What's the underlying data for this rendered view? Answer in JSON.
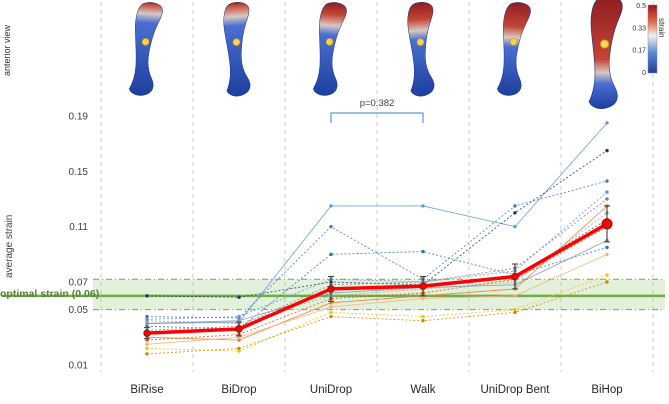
{
  "figure": {
    "anterior_view_label": "anterior view",
    "ylabel": "average strain",
    "optimal_label": "optimal strain (0.06)",
    "p_value_label": "p=0.382",
    "colorbar": {
      "label": "strain",
      "ticks": [
        "0.5",
        "0.33",
        "0.17",
        "0"
      ],
      "top_color": "#a50f15",
      "bottom_color": "#1c3f9a"
    }
  },
  "chart_data": {
    "type": "line",
    "title": "",
    "xlabel": "",
    "ylabel": "average strain",
    "categories": [
      "BiRise",
      "BiDrop",
      "UniDrop",
      "Walk",
      "UniDrop Bent",
      "BiHop"
    ],
    "yticks": [
      0.01,
      0.05,
      0.07,
      0.11,
      0.15,
      0.19
    ],
    "ylim": [
      0.005,
      0.205
    ],
    "grid": "vertical-dashed",
    "legend": "none",
    "optimal_strain": 0.06,
    "optimal_band": [
      0.05,
      0.072
    ],
    "optimal_color": "#70ad47",
    "p_value": {
      "label": "p=0.382",
      "between": [
        "UniDrop",
        "Walk"
      ]
    },
    "mean_series": {
      "name": "mean",
      "color": "#ff0000",
      "values": [
        0.033,
        0.036,
        0.065,
        0.067,
        0.074,
        0.112
      ],
      "errors": [
        0.004,
        0.005,
        0.009,
        0.007,
        0.009,
        0.013
      ]
    },
    "series": [
      {
        "name": "s1",
        "color": "#5B9BD5",
        "dash": "",
        "values": [
          0.04,
          0.041,
          0.125,
          0.125,
          0.11,
          0.185
        ]
      },
      {
        "name": "s2",
        "color": "#1F3864",
        "dash": "2 2",
        "values": [
          0.06,
          0.059,
          0.07,
          0.068,
          0.12,
          0.165
        ]
      },
      {
        "name": "s3",
        "color": "#4472C4",
        "dash": "2 2",
        "values": [
          0.045,
          0.044,
          0.11,
          0.072,
          0.125,
          0.143
        ]
      },
      {
        "name": "s4",
        "color": "#ED7D31",
        "dash": "",
        "values": [
          0.03,
          0.028,
          0.055,
          0.06,
          0.065,
          0.125
        ]
      },
      {
        "name": "s5",
        "color": "#A5A5A5",
        "dash": "2 2",
        "values": [
          0.042,
          0.04,
          0.06,
          0.065,
          0.07,
          0.12
        ]
      },
      {
        "name": "s6",
        "color": "#FFC000",
        "dash": "2 2",
        "values": [
          0.022,
          0.02,
          0.048,
          0.045,
          0.05,
          0.075
        ]
      },
      {
        "name": "s7",
        "color": "#F4B183",
        "dash": "",
        "values": [
          0.025,
          0.03,
          0.052,
          0.058,
          0.06,
          0.09
        ]
      },
      {
        "name": "s8",
        "color": "#7F7F7F",
        "dash": "2 2",
        "values": [
          0.035,
          0.038,
          0.068,
          0.07,
          0.08,
          0.13
        ]
      },
      {
        "name": "s9",
        "color": "#2E75B6",
        "dash": "2 2",
        "values": [
          0.038,
          0.036,
          0.09,
          0.092,
          0.075,
          0.095
        ]
      },
      {
        "name": "s10",
        "color": "#C55A11",
        "dash": "2 2",
        "values": [
          0.028,
          0.032,
          0.058,
          0.062,
          0.072,
          0.11
        ]
      },
      {
        "name": "s11",
        "color": "#8497B0",
        "dash": "",
        "values": [
          0.04,
          0.042,
          0.062,
          0.066,
          0.068,
          0.1
        ]
      },
      {
        "name": "s12",
        "color": "#BF8F00",
        "dash": "2 2",
        "values": [
          0.018,
          0.022,
          0.045,
          0.042,
          0.048,
          0.07
        ]
      },
      {
        "name": "s13",
        "color": "#698ED0",
        "dash": "2 2",
        "values": [
          0.043,
          0.045,
          0.072,
          0.07,
          0.078,
          0.135
        ]
      },
      {
        "name": "s14",
        "color": "#595959",
        "dash": "2 2",
        "values": [
          0.033,
          0.035,
          0.065,
          0.068,
          0.074,
          0.115
        ]
      }
    ],
    "strain_maps": {
      "red_fractions": [
        0.12,
        0.15,
        0.25,
        0.3,
        0.38,
        0.68
      ],
      "marker_color": "#FFD34D"
    }
  }
}
